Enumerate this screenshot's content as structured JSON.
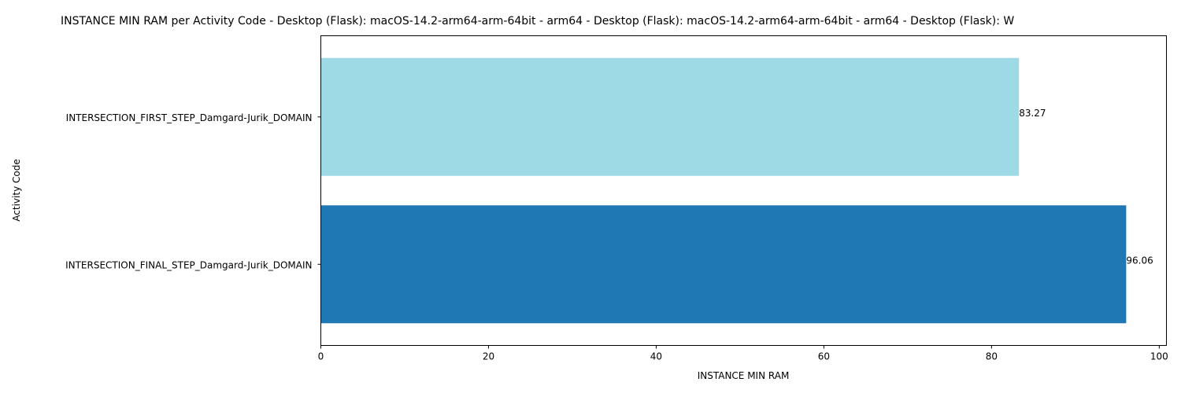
{
  "chart_data": {
    "type": "bar",
    "orientation": "horizontal",
    "title": "INSTANCE MIN RAM per Activity Code - Desktop (Flask): macOS-14.2-arm64-arm-64bit - arm64 - Desktop (Flask): macOS-14.2-arm64-arm-64bit - arm64 - Desktop (Flask): W",
    "xlabel": "INSTANCE MIN RAM",
    "ylabel": "Activity Code",
    "categories": [
      "INTERSECTION_FIRST_STEP_Damgard-Jurik_DOMAIN",
      "INTERSECTION_FINAL_STEP_Damgard-Jurik_DOMAIN"
    ],
    "values": [
      83.27,
      96.06
    ],
    "value_labels": [
      "83.27",
      "96.06"
    ],
    "colors": [
      "#9edae5",
      "#1f77b4"
    ],
    "xlim": [
      0,
      100.86
    ],
    "xticks": [
      0,
      20,
      40,
      60,
      80,
      100
    ],
    "grid": false,
    "legend": "none"
  }
}
